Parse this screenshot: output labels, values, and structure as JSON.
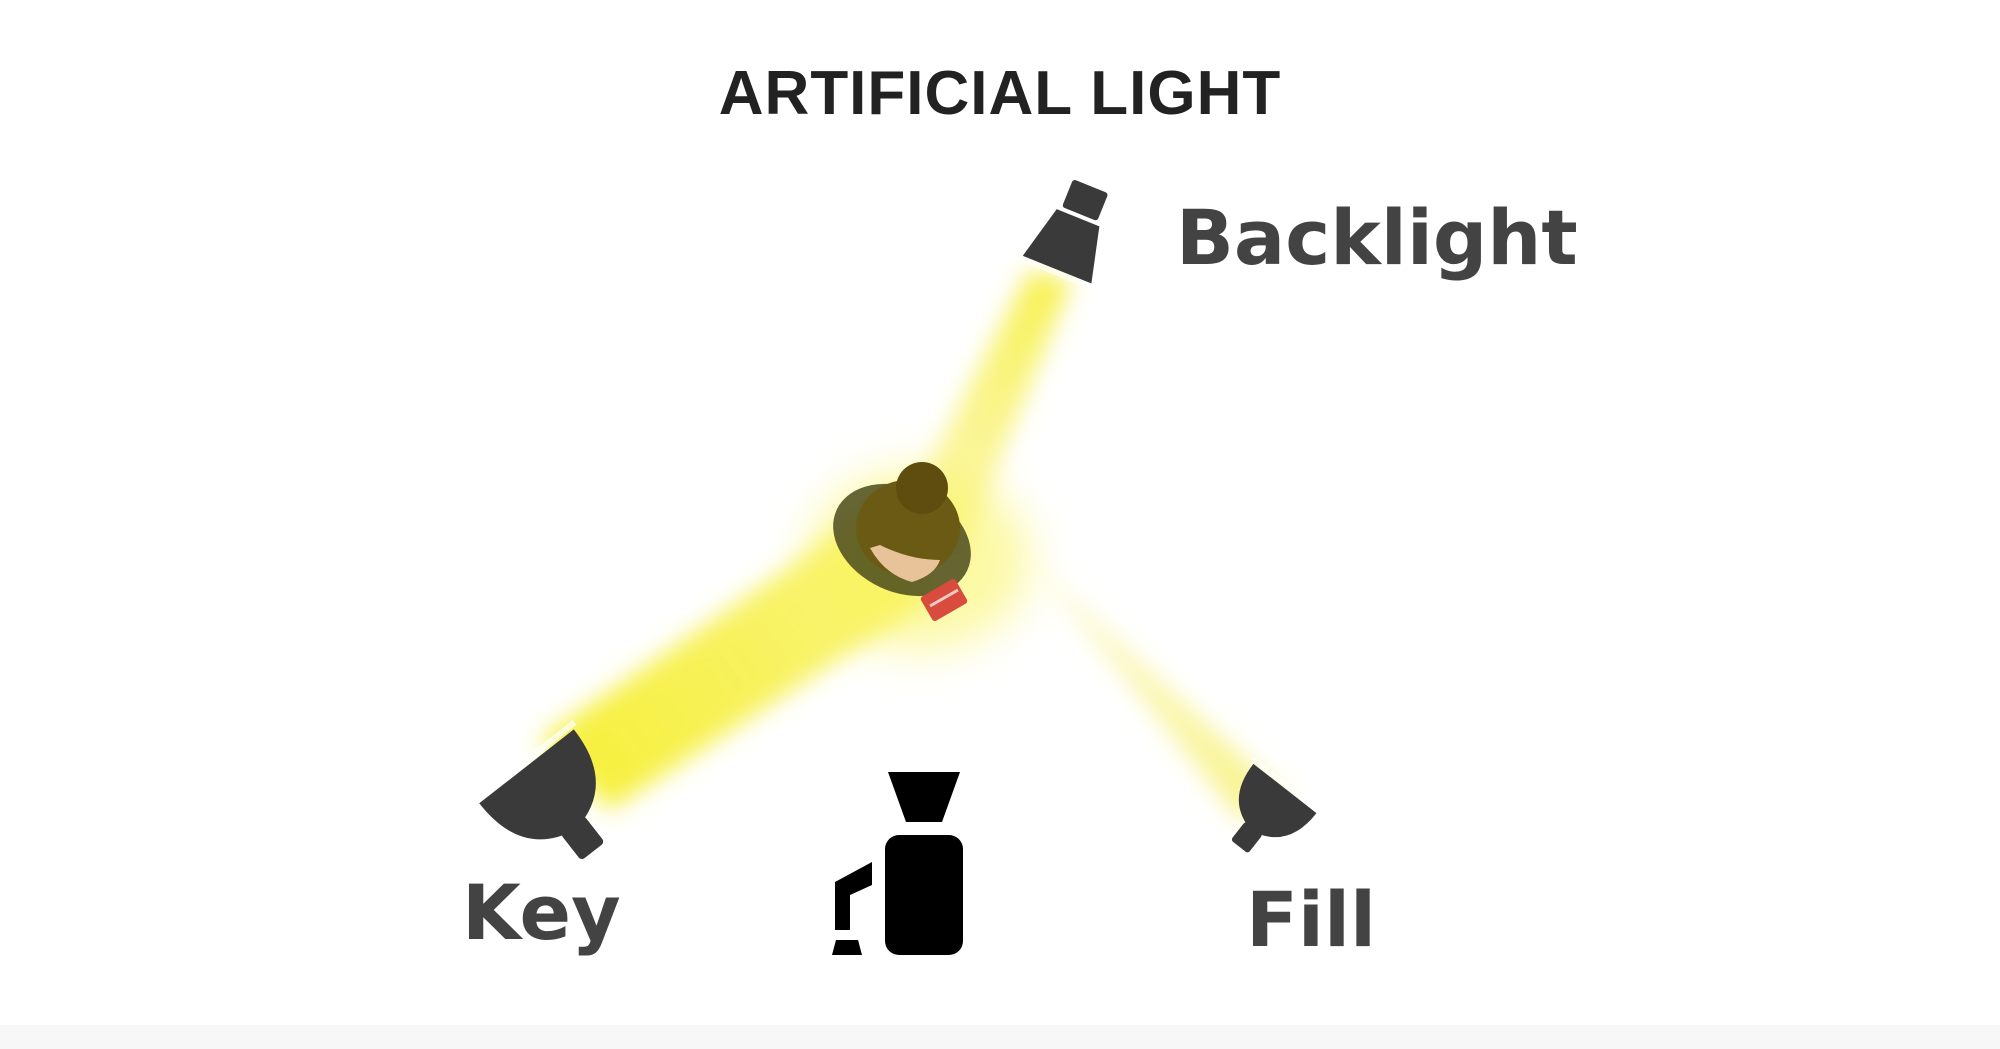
{
  "title": "ARTIFICIAL LIGHT",
  "labels": {
    "backlight": "Backlight",
    "key": "Key",
    "fill": "Fill"
  },
  "icons": {
    "backlight_lamp": "light-lamp-icon",
    "key_lamp": "light-lamp-icon",
    "fill_lamp": "light-lamp-icon",
    "camera": "camera-icon",
    "subject": "person-topdown-icon"
  },
  "colors": {
    "title": "#222222",
    "label": "#434343",
    "lamp": "#3a3a3a",
    "beam": "#f5ee3a",
    "camera": "#000000",
    "hair": "#5a4a0e",
    "accent_red": "#d94b3d"
  }
}
